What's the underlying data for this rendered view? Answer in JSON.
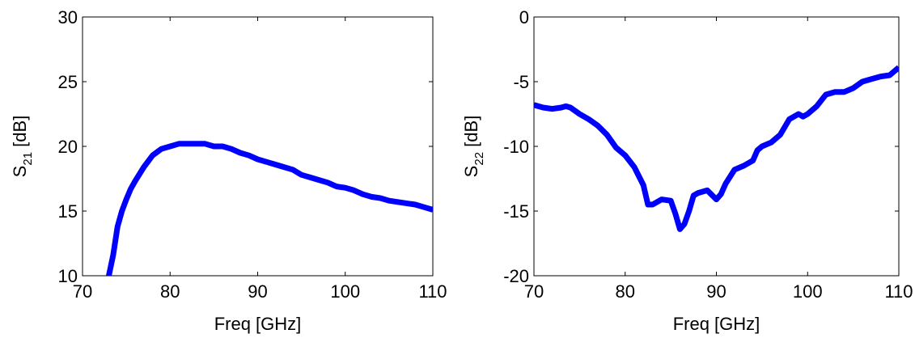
{
  "chart_data": [
    {
      "type": "line",
      "xlabel": "Freq [GHz]",
      "ylabel": {
        "base": "S",
        "sub": "21",
        "unit": " [dB]"
      },
      "xlim": [
        70,
        110
      ],
      "ylim": [
        10,
        30
      ],
      "xticks": [
        70,
        80,
        90,
        100,
        110
      ],
      "yticks": [
        10,
        15,
        20,
        25,
        30
      ],
      "grid": false,
      "line_color": "#0000ff",
      "series": [
        {
          "x": [
            73.0,
            73.5,
            74.0,
            74.5,
            75.0,
            75.5,
            76.0,
            77.0,
            78.0,
            79.0,
            80.0,
            81.0,
            82.0,
            83.0,
            84.0,
            85.0,
            86.0,
            87.0,
            88.0,
            89.0,
            90.0,
            91.0,
            92.0,
            93.0,
            94.0,
            95.0,
            96.0,
            97.0,
            98.0,
            99.0,
            100.0,
            101.0,
            102.0,
            103.0,
            104.0,
            105.0,
            106.0,
            107.0,
            108.0,
            109.0,
            110.0
          ],
          "y": [
            10.0,
            11.6,
            13.8,
            15.0,
            15.9,
            16.7,
            17.3,
            18.4,
            19.3,
            19.8,
            20.0,
            20.2,
            20.2,
            20.2,
            20.2,
            20.0,
            20.0,
            19.8,
            19.5,
            19.3,
            19.0,
            18.8,
            18.6,
            18.4,
            18.2,
            17.8,
            17.6,
            17.4,
            17.2,
            16.9,
            16.8,
            16.6,
            16.3,
            16.1,
            16.0,
            15.8,
            15.7,
            15.6,
            15.5,
            15.3,
            15.1
          ]
        }
      ]
    },
    {
      "type": "line",
      "xlabel": "Freq [GHz]",
      "ylabel": {
        "base": "S",
        "sub": "22",
        "unit": " [dB]"
      },
      "xlim": [
        70,
        110
      ],
      "ylim": [
        -20,
        0
      ],
      "xticks": [
        70,
        80,
        90,
        100,
        110
      ],
      "yticks": [
        -20,
        -15,
        -10,
        -5,
        0
      ],
      "grid": false,
      "line_color": "#0000ff",
      "series": [
        {
          "x": [
            70.0,
            71.0,
            72.0,
            73.0,
            73.5,
            74.0,
            75.0,
            76.0,
            77.0,
            78.0,
            79.0,
            80.0,
            81.0,
            82.0,
            82.5,
            83.0,
            84.0,
            85.0,
            85.5,
            86.0,
            86.5,
            87.0,
            87.5,
            88.0,
            89.0,
            90.0,
            90.5,
            91.0,
            92.0,
            93.0,
            94.0,
            94.5,
            95.0,
            96.0,
            97.0,
            98.0,
            99.0,
            99.5,
            100.0,
            101.0,
            102.0,
            103.0,
            104.0,
            105.0,
            106.0,
            107.0,
            108.0,
            109.0,
            110.0
          ],
          "y": [
            -6.8,
            -7.0,
            -7.1,
            -7.0,
            -6.9,
            -7.0,
            -7.5,
            -7.9,
            -8.4,
            -9.1,
            -10.1,
            -10.7,
            -11.6,
            -13.0,
            -14.5,
            -14.5,
            -14.1,
            -14.2,
            -15.2,
            -16.4,
            -16.0,
            -15.0,
            -13.8,
            -13.6,
            -13.4,
            -14.1,
            -13.7,
            -12.9,
            -11.8,
            -11.5,
            -11.1,
            -10.3,
            -10.0,
            -9.7,
            -9.1,
            -7.9,
            -7.5,
            -7.7,
            -7.5,
            -6.9,
            -6.0,
            -5.8,
            -5.8,
            -5.5,
            -5.0,
            -4.8,
            -4.6,
            -4.5,
            -3.9
          ]
        }
      ]
    }
  ]
}
